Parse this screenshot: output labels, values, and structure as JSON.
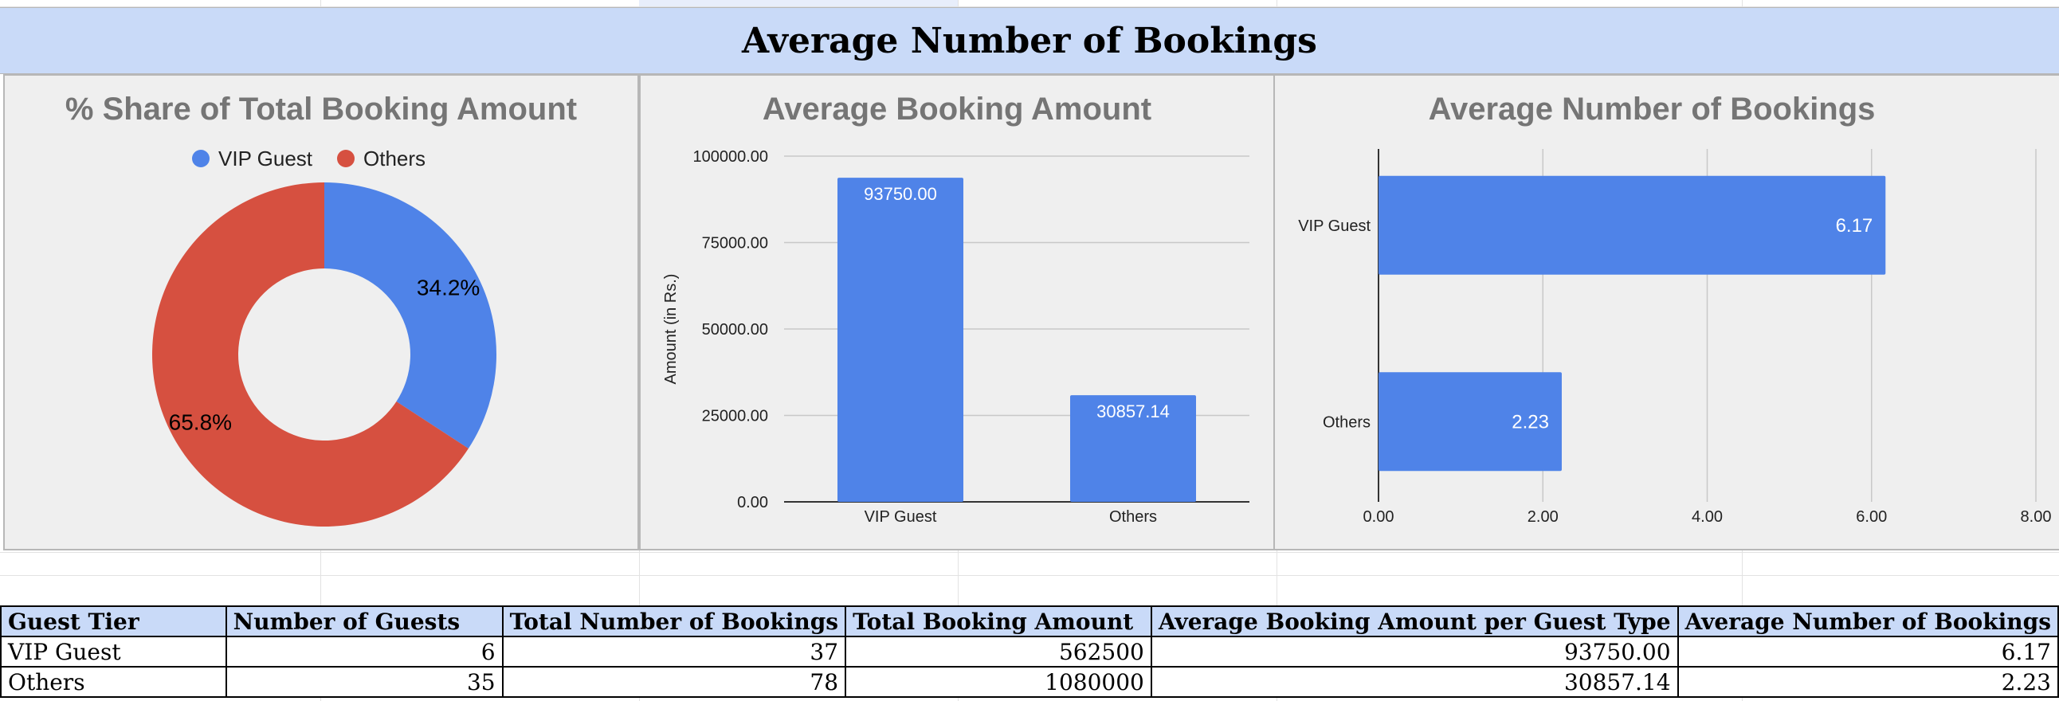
{
  "header": {
    "title": "Average Number of Bookings"
  },
  "colors": {
    "vip": "#4f83e8",
    "others": "#d65040",
    "header_bg": "#c9daf8",
    "panel_bg": "#efefef"
  },
  "chart_data": [
    {
      "type": "pie",
      "style": "donut",
      "title": "% Share of Total Booking Amount",
      "legend": {
        "position": "top",
        "entries": [
          "VIP Guest",
          "Others"
        ]
      },
      "slices": [
        {
          "label": "VIP Guest",
          "value": 34.2,
          "display": "34.2%",
          "color": "#4f83e8"
        },
        {
          "label": "Others",
          "value": 65.8,
          "display": "65.8%",
          "color": "#d65040"
        }
      ]
    },
    {
      "type": "bar",
      "title": "Average Booking Amount",
      "ylabel": "Amount (in Rs.)",
      "xlabel": "",
      "categories": [
        "VIP Guest",
        "Others"
      ],
      "values": [
        93750.0,
        30857.14
      ],
      "data_labels": [
        "93750.00",
        "30857.14"
      ],
      "ylim": [
        0,
        100000
      ],
      "yticks": [
        0,
        25000,
        50000,
        75000,
        100000
      ],
      "ytick_labels": [
        "0.00",
        "25000.00",
        "50000.00",
        "75000.00",
        "100000.00"
      ],
      "grid": true,
      "color": "#4f83e8"
    },
    {
      "type": "bar",
      "orientation": "horizontal",
      "title": "Average Number of Bookings",
      "categories": [
        "VIP Guest",
        "Others"
      ],
      "values": [
        6.17,
        2.23
      ],
      "data_labels": [
        "6.17",
        "2.23"
      ],
      "xlim": [
        0,
        8
      ],
      "xticks": [
        0,
        2,
        4,
        6,
        8
      ],
      "xtick_labels": [
        "0.00",
        "2.00",
        "4.00",
        "6.00",
        "8.00"
      ],
      "grid": true,
      "color": "#4f83e8"
    }
  ],
  "table": {
    "headers": [
      "Guest Tier",
      "Number of Guests",
      "Total Number of Bookings",
      "Total Booking Amount",
      "Average Booking Amount per Guest Type",
      "Average Number of Bookings"
    ],
    "rows": [
      [
        "VIP Guest",
        "6",
        "37",
        "562500",
        "93750.00",
        "6.17"
      ],
      [
        "Others",
        "35",
        "78",
        "1080000",
        "30857.14",
        "2.23"
      ]
    ]
  }
}
